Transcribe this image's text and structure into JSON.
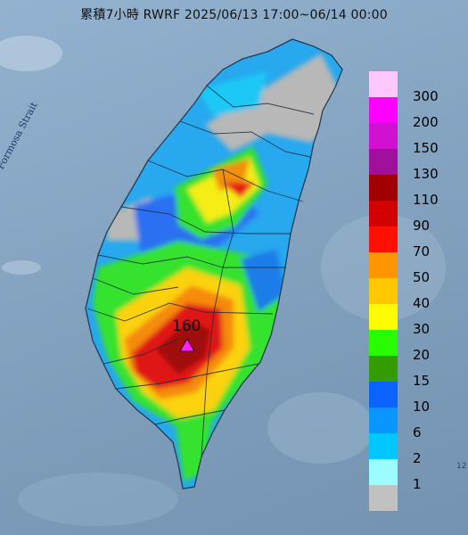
{
  "header": {
    "title": "累積7小時 RWRF 2025/06/13 17:00~06/14 00:00"
  },
  "map": {
    "strait_label": "Formosa Strait",
    "peak_value": "160",
    "edge_label": "12"
  },
  "legend": {
    "items": [
      {
        "label": "300",
        "color": "#ffc8fb"
      },
      {
        "label": "200",
        "color": "#ff00ff"
      },
      {
        "label": "150",
        "color": "#d111d1"
      },
      {
        "label": "130",
        "color": "#a0109c"
      },
      {
        "label": "110",
        "color": "#a00000"
      },
      {
        "label": "90",
        "color": "#d30000"
      },
      {
        "label": "70",
        "color": "#ff1000"
      },
      {
        "label": "50",
        "color": "#ff9600"
      },
      {
        "label": "40",
        "color": "#ffc800"
      },
      {
        "label": "30",
        "color": "#fffb00"
      },
      {
        "label": "20",
        "color": "#2afc00"
      },
      {
        "label": "15",
        "color": "#339c00"
      },
      {
        "label": "10",
        "color": "#0c64ff"
      },
      {
        "label": "6",
        "color": "#0a96ff"
      },
      {
        "label": "2",
        "color": "#00c8ff"
      },
      {
        "label": "1",
        "color": "#9bfdfd"
      },
      {
        "label": "",
        "color": "#c1c1c1"
      }
    ]
  }
}
